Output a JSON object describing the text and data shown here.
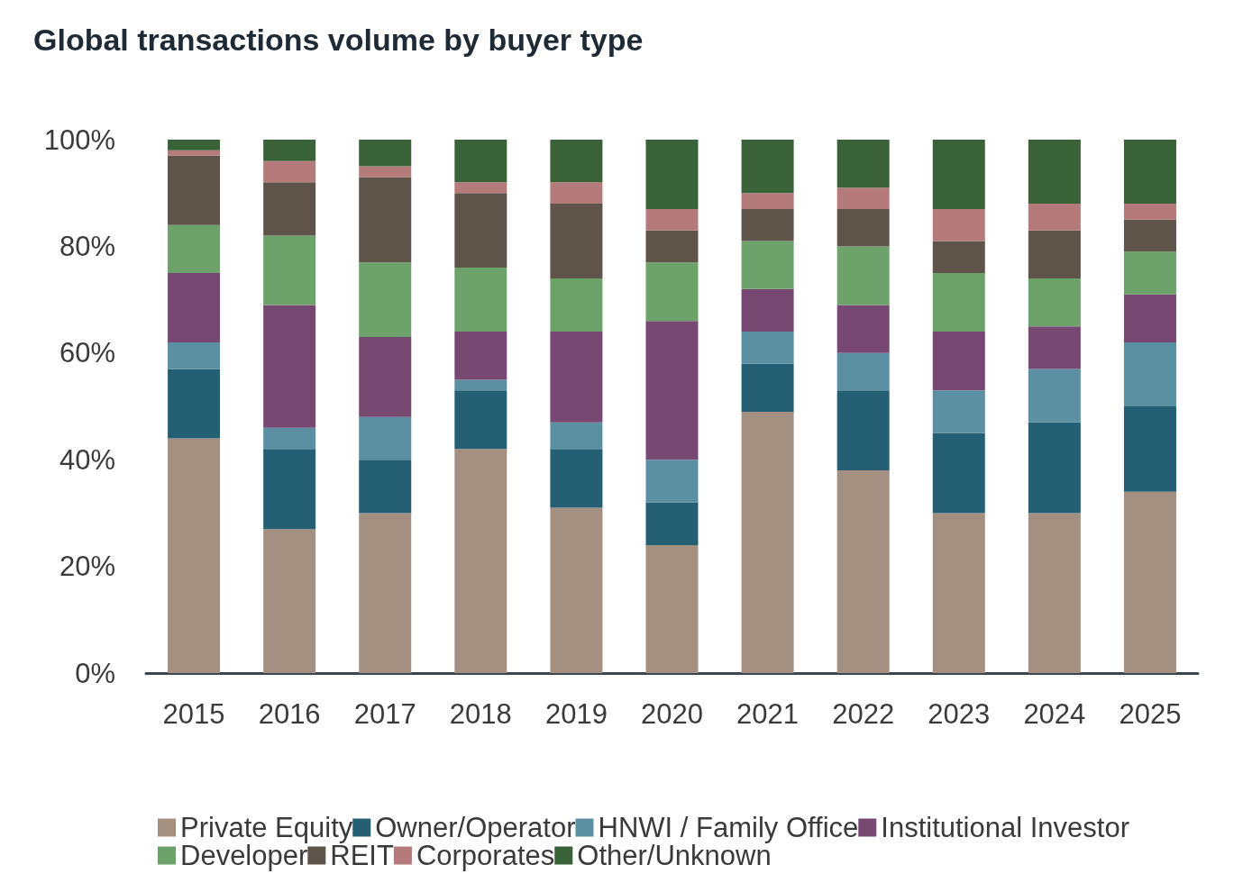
{
  "chart_data": {
    "type": "bar",
    "title": "Global transactions volume by buyer type",
    "stacked": true,
    "legend": "bottom",
    "grid": false,
    "categories": [
      "2015",
      "2016",
      "2017",
      "2018",
      "2019",
      "2020",
      "2021",
      "2022",
      "2023",
      "2024",
      "2025"
    ],
    "ylim": [
      0,
      100
    ],
    "yticks": [
      {
        "value": 0,
        "label": "0%"
      },
      {
        "value": 20,
        "label": "20%"
      },
      {
        "value": 40,
        "label": "40%"
      },
      {
        "value": 60,
        "label": "60%"
      },
      {
        "value": 80,
        "label": "80%"
      },
      {
        "value": 100,
        "label": "100%"
      }
    ],
    "series": [
      {
        "name": "Private Equity",
        "color": "#a39080",
        "values": [
          44,
          27,
          30,
          42,
          31,
          24,
          49,
          38,
          30,
          30,
          34
        ]
      },
      {
        "name": "Owner/Operator",
        "color": "#245f74",
        "values": [
          13,
          15,
          10,
          11,
          11,
          8,
          9,
          15,
          15,
          17,
          16
        ]
      },
      {
        "name": "HNWI / Family Office",
        "color": "#5a90a2",
        "values": [
          5,
          4,
          8,
          2,
          5,
          8,
          6,
          7,
          8,
          10,
          12
        ]
      },
      {
        "name": "Institutional Investor",
        "color": "#774872",
        "values": [
          13,
          23,
          15,
          9,
          17,
          26,
          8,
          9,
          11,
          8,
          9
        ]
      },
      {
        "name": "Developer",
        "color": "#6da36b",
        "values": [
          9,
          13,
          14,
          12,
          10,
          11,
          9,
          11,
          11,
          9,
          8
        ]
      },
      {
        "name": "REIT",
        "color": "#5e544a",
        "values": [
          13,
          10,
          16,
          14,
          14,
          6,
          6,
          7,
          6,
          9,
          6
        ]
      },
      {
        "name": "Corporates",
        "color": "#b57a7a",
        "values": [
          1,
          4,
          2,
          2,
          4,
          4,
          3,
          4,
          6,
          5,
          3
        ]
      },
      {
        "name": "Other/Unknown",
        "color": "#3a6238",
        "values": [
          2,
          4,
          5,
          8,
          8,
          13,
          10,
          9,
          13,
          12,
          12
        ]
      }
    ]
  }
}
